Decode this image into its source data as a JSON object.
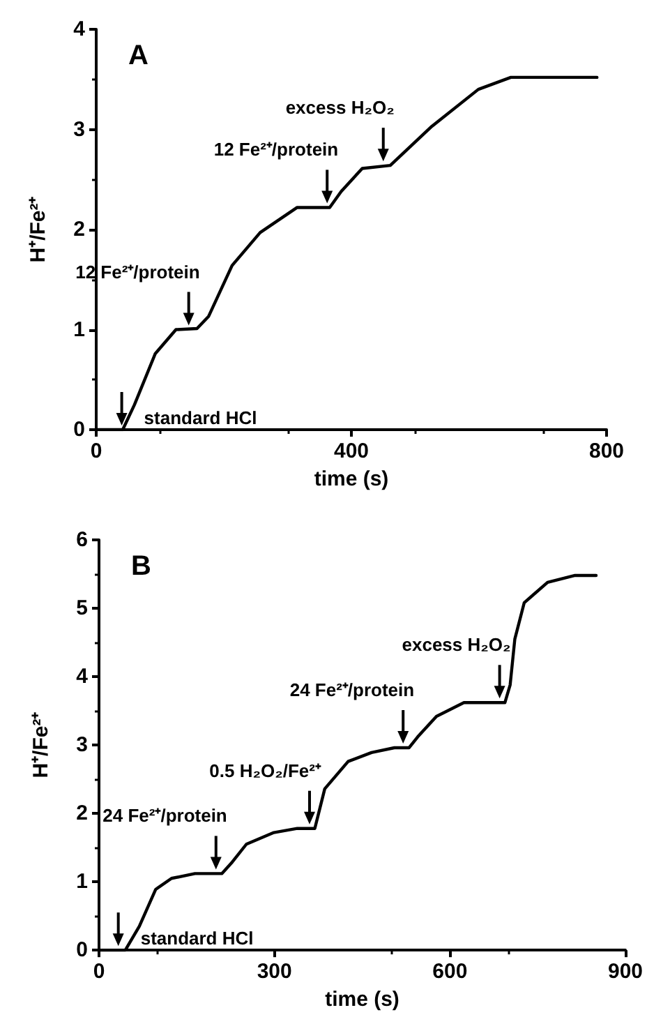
{
  "chart_data": [
    {
      "type": "line",
      "title": "A",
      "xlabel": "time (s)",
      "ylabel": "H⁺/Fe²⁺",
      "xlim": [
        0,
        800
      ],
      "xticks": [
        0,
        400,
        800
      ],
      "ylim": [
        0,
        4
      ],
      "yticks": [
        0,
        1,
        2,
        3,
        4
      ],
      "grid": false,
      "marker": "none",
      "line_style": "solid",
      "series": [
        {
          "color": "#000000",
          "x": [
            0,
            41.6,
            60,
            92.6,
            125,
            158,
            176,
            213,
            257,
            315,
            366,
            384,
            417,
            461,
            526,
            599,
            650,
            785
          ],
          "values": [
            0,
            0,
            0.25,
            0.76,
            1.0,
            1.01,
            1.13,
            1.64,
            1.97,
            2.22,
            2.22,
            2.38,
            2.61,
            2.64,
            3.03,
            3.4,
            3.52,
            3.52
          ]
        }
      ],
      "annotations": [
        {
          "text": "standard HCl",
          "x": 40,
          "y": 0
        },
        {
          "text": "12 Fe²⁺/protein",
          "x": 145,
          "y": 1.0
        },
        {
          "text": "12 Fe²⁺/protein",
          "x": 362,
          "y": 2.22
        },
        {
          "text": "excess H₂O₂",
          "x": 450,
          "y": 2.64
        }
      ]
    },
    {
      "type": "line",
      "title": "B",
      "xlabel": "time (s)",
      "ylabel": "H⁺/Fe²⁺",
      "xlim": [
        0,
        900
      ],
      "xticks": [
        0,
        300,
        600,
        900
      ],
      "ylim": [
        0,
        6
      ],
      "yticks": [
        0,
        1,
        2,
        3,
        4,
        5,
        6
      ],
      "grid": false,
      "marker": "none",
      "line_style": "solid",
      "series": [
        {
          "color": "#000000",
          "x": [
            0,
            45,
            69,
            97,
            124,
            164,
            210,
            228,
            252,
            299,
            339,
            369,
            386,
            426,
            466,
            505,
            530,
            545,
            577,
            624,
            694,
            703,
            711,
            727,
            767,
            814,
            850
          ],
          "values": [
            0,
            0,
            0.35,
            0.89,
            1.05,
            1.12,
            1.12,
            1.29,
            1.55,
            1.72,
            1.78,
            1.78,
            2.36,
            2.76,
            2.89,
            2.96,
            2.96,
            3.12,
            3.42,
            3.62,
            3.62,
            3.88,
            4.55,
            5.08,
            5.38,
            5.48,
            5.48
          ]
        }
      ],
      "annotations": [
        {
          "text": "standard HCl",
          "x": 33,
          "y": 0
        },
        {
          "text": "24 Fe²⁺/protein",
          "x": 200,
          "y": 1.12
        },
        {
          "text": "0.5 H₂O₂/Fe²⁺",
          "x": 360,
          "y": 1.78
        },
        {
          "text": "24 Fe²⁺/protein",
          "x": 520,
          "y": 2.96
        },
        {
          "text": "excess H₂O₂",
          "x": 685,
          "y": 3.62
        }
      ]
    }
  ]
}
